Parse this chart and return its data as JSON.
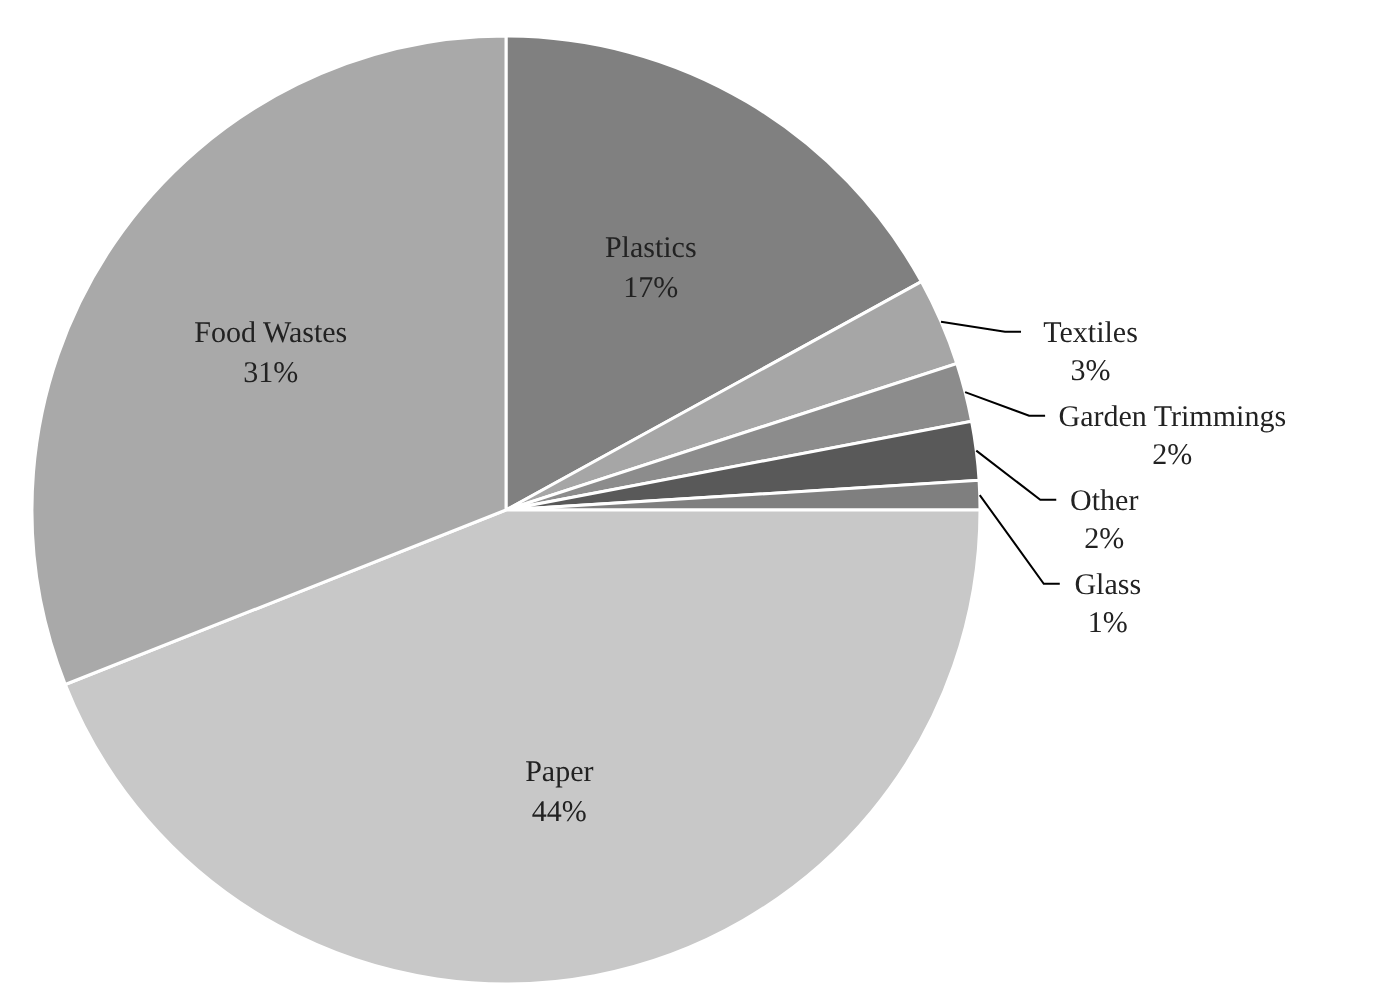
{
  "chart_data": {
    "type": "pie",
    "categories": [
      "Plastics",
      "Textiles",
      "Garden Trimmings",
      "Other",
      "Glass",
      "Paper",
      "Food Wastes"
    ],
    "values": [
      17,
      3,
      2,
      2,
      1,
      44,
      31
    ],
    "colors": [
      "#808080",
      "#a6a6a6",
      "#8c8c8c",
      "#595959",
      "#7f7f7f",
      "#c8c8c8",
      "#a9a9a9"
    ],
    "value_labels": [
      "17%",
      "3%",
      "2%",
      "2%",
      "1%",
      "44%",
      "31%"
    ]
  }
}
